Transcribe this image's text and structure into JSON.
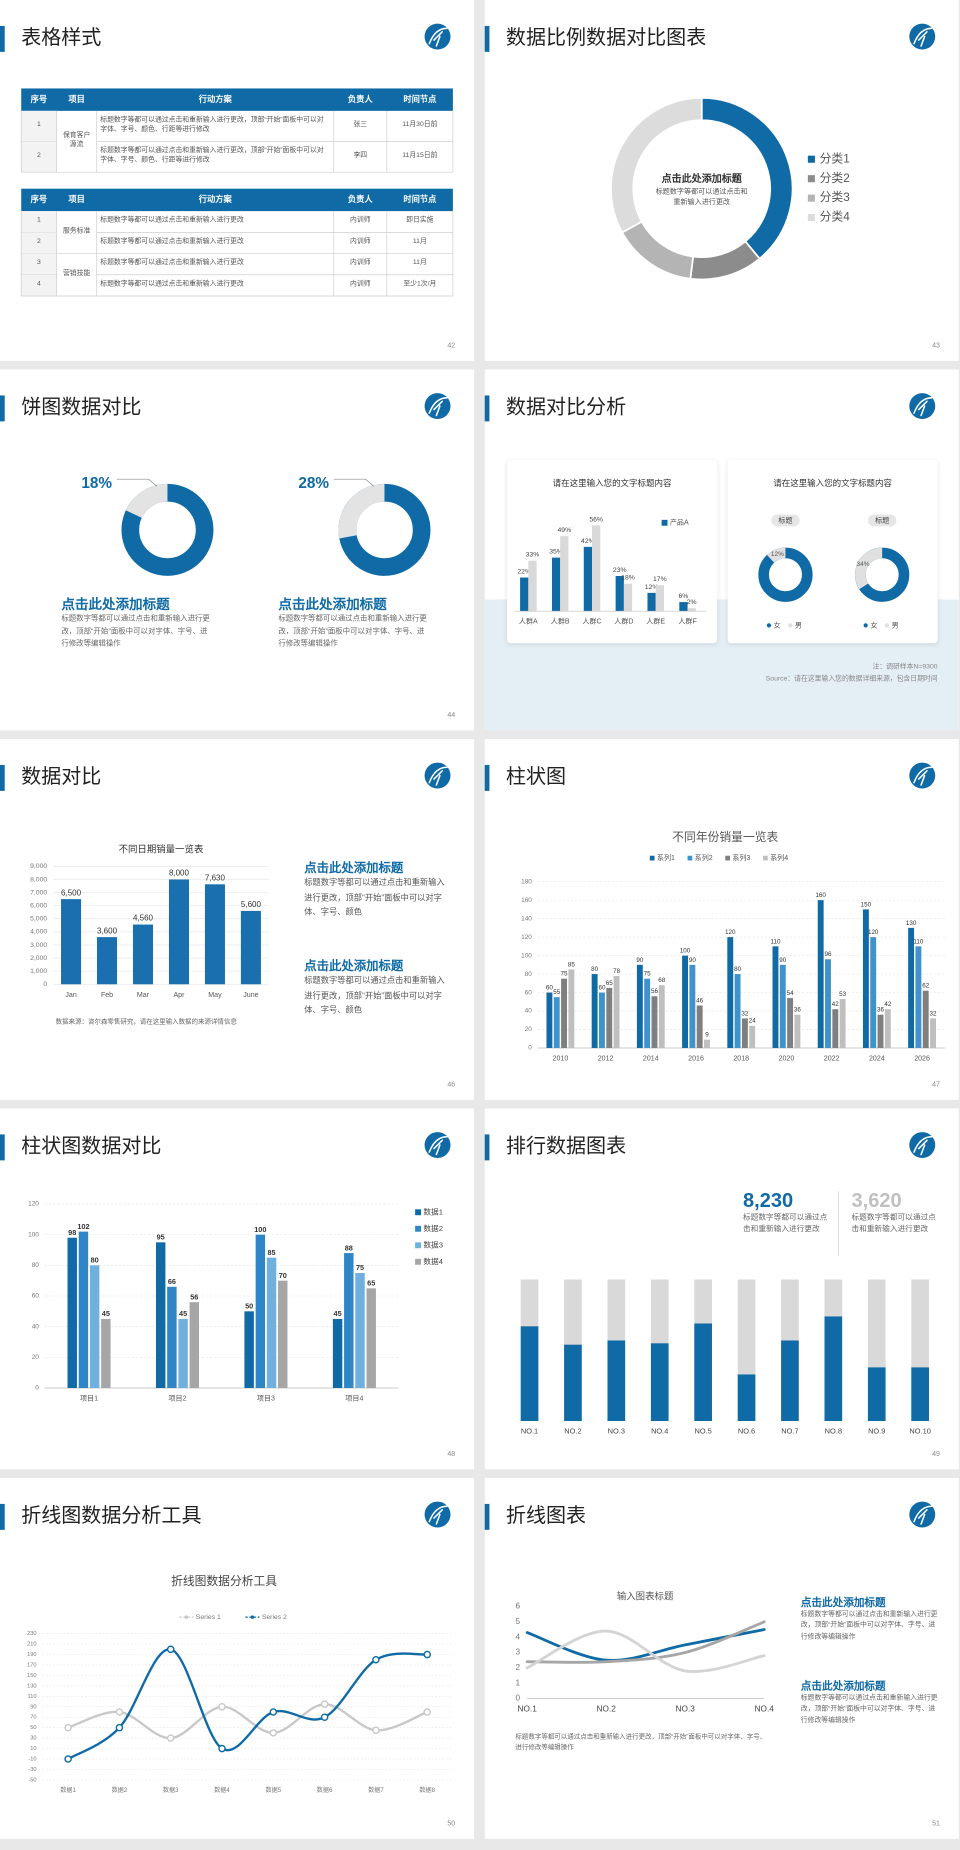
{
  "slides": [
    {
      "title": "表格样式",
      "page": 42,
      "tables": [
        {
          "header": [
            "序号",
            "项目",
            "行动方案",
            "负责人",
            "时间节点"
          ],
          "rows": [
            [
              "1",
              "保育客户源流",
              "标题数字等都可以通过点击和重新输入进行更改，顶部“开始”面板中可以对字体、字号、颜色、行距等进行修改",
              "张三",
              "11月30日前"
            ],
            [
              "2",
              null,
              "标题数字等都可以通过点击和重新输入进行更改，顶部“开始”面板中可以对字体、字号、颜色、行距等进行修改",
              "李四",
              "11月15日前"
            ]
          ]
        },
        {
          "header": [
            "序号",
            "项目",
            "行动方案",
            "负责人",
            "时间节点"
          ],
          "rows": [
            [
              "1",
              "服务标准",
              "标题数字等都可以通过点击和重新输入进行更改",
              "内训师",
              "即日实施"
            ],
            [
              "2",
              null,
              "标题数字等都可以通过点击和重新输入进行更改",
              "内训师",
              "11月"
            ],
            [
              "3",
              "营销技能",
              "标题数字等都可以通过点击和重新输入进行更改",
              "内训师",
              "11月"
            ],
            [
              "4",
              null,
              "标题数字等都可以通过点击和重新输入进行更改",
              "内训师",
              "至少1次/月"
            ]
          ]
        }
      ]
    },
    {
      "title": "数据比例数据对比图表",
      "page": 43,
      "chart_data": {
        "type": "donut",
        "title": "点击此处添加标题",
        "text": "标题数字等都可以通过点击和重新输入进行更改",
        "categories": [
          "分类1",
          "分类2",
          "分类3",
          "分类4"
        ],
        "values": [
          39,
          13,
          15,
          33
        ],
        "colors": [
          "#0f6aa6",
          "#8c8c8c",
          "#b4b4b4",
          "#dcdcdc"
        ]
      }
    },
    {
      "title": "饼图数据对比",
      "page": 44,
      "items": [
        {
          "chart_data": {
            "type": "donut",
            "values": [
              18
            ],
            "value_labels": [
              "18%"
            ],
            "color": "#e3e3e3",
            "track_color": "#0f6aa6"
          },
          "heading": "点击此处添加标题",
          "text": "标题数字等都可以通过点击和重新输入进行更改，顶部“开始”面板中可以对字体、字号、进行修改等编辑操作"
        },
        {
          "chart_data": {
            "type": "donut",
            "values": [
              28
            ],
            "value_labels": [
              "28%"
            ],
            "color": "#e3e3e3",
            "track_color": "#0f6aa6"
          },
          "heading": "点击此处添加标题",
          "text": "标题数字等都可以通过点击和重新输入进行更改，顶部“开始”面板中可以对字体、字号、进行修改等编辑操作"
        }
      ]
    },
    {
      "title": "数据对比分析",
      "page": 45,
      "cards": [
        {
          "title": "请在这里输入您的文字标题内容",
          "chart_data": {
            "type": "bar",
            "categories": [
              "人群A",
              "人群B",
              "人群C",
              "人群D",
              "人群E",
              "人群F"
            ],
            "series": [
              {
                "name": "产品A",
                "color": "#0f6aa6",
                "values": [
                  22,
                  35,
                  42,
                  23,
                  12,
                  6
                ],
                "value_labels": [
                  "22%",
                  "35%",
                  "42%",
                  "23%",
                  "12%",
                  "6%"
                ]
              },
              {
                "color": "#d9d9d9",
                "values": [
                  33,
                  49,
                  56,
                  18,
                  17,
                  2
                ],
                "value_labels": [
                  "33%",
                  "49%",
                  "56%",
                  "18%",
                  "17%",
                  "2%"
                ]
              }
            ]
          }
        },
        {
          "title": "请在这里输入您的文字标题内容",
          "chart_data": {
            "type": "donut",
            "legend": [
              {
                "name": "女",
                "color": "#0f6aa6"
              },
              {
                "name": "男",
                "color": "#e0e0e0"
              }
            ],
            "charts": [
              {
                "label": "标题",
                "values": [
                  12
                ],
                "value_labels": [
                  "12%"
                ]
              },
              {
                "label": "标题",
                "values": [
                  34
                ],
                "value_labels": [
                  "34%"
                ]
              }
            ]
          }
        }
      ],
      "notes": [
        "注：调研样本N=9300",
        "Source：请在这里输入您的数据详细来源，包含日期时间"
      ]
    },
    {
      "title": "数据对比",
      "page": 46,
      "chart_data": {
        "type": "bar",
        "title": "不同日期销量一览表",
        "categories": [
          "Jan",
          "Feb",
          "Mar",
          "Apr",
          "May",
          "June"
        ],
        "values": [
          6500,
          3600,
          4560,
          8000,
          7630,
          5600
        ],
        "value_labels": [
          "6,500",
          "3,600",
          "4,560",
          "8,000",
          "7,630",
          "5,600"
        ],
        "color": "#1a6fae",
        "ylim": [
          0,
          9000
        ],
        "yticks": [
          0,
          {
            "value": 1000,
            "label": "1,000"
          },
          {
            "value": 2000,
            "label": "2,000"
          },
          {
            "value": 3000,
            "label": "3,000"
          },
          {
            "value": 4000,
            "label": "4,000"
          },
          {
            "value": 5000,
            "label": "5,000"
          },
          {
            "value": 6000,
            "label": "6,000"
          },
          {
            "value": 7000,
            "label": "7,000"
          },
          {
            "value": 8000,
            "label": "8,000"
          },
          {
            "value": 9000,
            "label": "9,000"
          }
        ],
        "grid": true,
        "source": "数据来源：咨尔森零售研究，请在这里输入数据的来源详情信息"
      },
      "blocks": [
        {
          "heading": "点击此处添加标题",
          "text": "标题数字等都可以通过点击和重新输入进行更改，顶部“开始”面板中可以对字体、字号、颜色"
        },
        {
          "heading": "点击此处添加标题",
          "text": "标题数字等都可以通过点击和重新输入进行更改，顶部“开始”面板中可以对字体、字号、颜色"
        }
      ]
    },
    {
      "title": "柱状图",
      "page": 47,
      "chart_data": {
        "type": "bar",
        "title": "不同年份销量一览表",
        "categories": [
          "2010",
          "2012",
          "2014",
          "2016",
          "2018",
          "2020",
          "2022",
          "2024",
          "2026"
        ],
        "series": [
          {
            "name": "系列1",
            "color": "#0f6aa6",
            "values": [
              60,
              80,
              90,
              100,
              120,
              110,
              160,
              150,
              130
            ]
          },
          {
            "name": "系列2",
            "color": "#3f93cc",
            "values": [
              55,
              60,
              75,
              90,
              80,
              90,
              96,
              120,
              110
            ]
          },
          {
            "name": "系列3",
            "color": "#7f7f7f",
            "values": [
              75,
              65,
              56,
              46,
              32,
              54,
              42,
              36,
              62
            ]
          },
          {
            "name": "系列4",
            "color": "#bfbfbf",
            "values": [
              85,
              78,
              68,
              9,
              24,
              36,
              53,
              42,
              32
            ]
          }
        ],
        "ylim": [
          0,
          180
        ],
        "yticks": [
          0,
          20,
          40,
          60,
          80,
          100,
          120,
          140,
          160,
          180
        ],
        "grid": true,
        "legend": "top"
      }
    },
    {
      "title": "柱状图数据对比",
      "page": 48,
      "chart_data": {
        "type": "bar",
        "categories": [
          "项目1",
          "项目2",
          "项目3",
          "项目4"
        ],
        "series": [
          {
            "name": "数据1",
            "color": "#0f6aa6",
            "values": [
              98,
              95,
              50,
              45
            ]
          },
          {
            "name": "数据2",
            "color": "#2f86c6",
            "values": [
              102,
              66,
              100,
              88
            ]
          },
          {
            "name": "数据3",
            "color": "#6fb0de",
            "values": [
              80,
              45,
              85,
              75
            ]
          },
          {
            "name": "数据4",
            "color": "#a6a6a6",
            "values": [
              45,
              56,
              70,
              65
            ]
          }
        ],
        "ylim": [
          0,
          120
        ],
        "yticks": [
          0,
          20,
          40,
          60,
          80,
          100,
          120
        ],
        "grid": true,
        "legend": "right"
      }
    },
    {
      "title": "排行数据图表",
      "page": 49,
      "highlights": [
        {
          "value": "8,230",
          "color": "#0f6aa6",
          "text": "标题数字等都可以通过点击和重新输入进行更改"
        },
        {
          "value": "3,620",
          "color": "#c0c0c0",
          "text": "标题数字等都可以通过点击和重新输入进行更改"
        }
      ],
      "chart_data": {
        "type": "stacked_bar",
        "categories": [
          "NO.1",
          "NO.2",
          "NO.3",
          "NO.4",
          "NO.5",
          "NO.6",
          "NO.7",
          "NO.8",
          "NO.9",
          "NO.10"
        ],
        "series": [
          {
            "color": "#0f6aa6",
            "values": [
              67,
              54,
              57,
              55,
              69,
              33,
              57,
              74,
              38,
              38
            ]
          },
          {
            "color": "#d9d9d9",
            "values": [
              33,
              46,
              43,
              45,
              31,
              67,
              43,
              26,
              62,
              62
            ]
          }
        ]
      }
    },
    {
      "title": "折线图数据分析工具",
      "page": 50,
      "chart_data": {
        "type": "line",
        "title": "折线图数据分析工具",
        "categories": [
          "数据1",
          "数据2",
          "数据3",
          "数据4",
          "数据5",
          "数据6",
          "数据7",
          "数据8"
        ],
        "series": [
          {
            "name": "Series 1",
            "color": "#c8c8c8",
            "values": [
              50,
              80,
              30,
              90,
              40,
              95,
              45,
              80
            ]
          },
          {
            "name": "Series 2",
            "color": "#0f6aa6",
            "values": [
              -10,
              50,
              200,
              10,
              80,
              70,
              180,
              190
            ]
          }
        ],
        "ylim": [
          -50,
          230
        ],
        "yticks": [
          -50,
          -30,
          -10,
          10,
          30,
          50,
          70,
          90,
          110,
          130,
          150,
          170,
          190,
          210,
          230
        ],
        "grid": true,
        "legend": "top"
      }
    },
    {
      "title": "折线图表",
      "page": 51,
      "chart_data": {
        "type": "line",
        "title": "输入图表标题",
        "categories": [
          "NO.1",
          "NO.2",
          "NO.3",
          "NO.4"
        ],
        "series": [
          {
            "color": "#0f6aa6",
            "values": [
              4.3,
              2.5,
              3.5,
              4.5
            ]
          },
          {
            "color": "#a6a6a6",
            "values": [
              2.4,
              2.4,
              3.0,
              5.0
            ]
          },
          {
            "color": "#d4d4d4",
            "values": [
              2.0,
              4.4,
              1.8,
              2.8
            ]
          }
        ],
        "ylim": [
          0,
          6
        ],
        "yticks": [
          0,
          1,
          2,
          3,
          4,
          5,
          6
        ],
        "grid": false
      },
      "blocks": [
        {
          "heading": "点击此处添加标题",
          "text": "标题数字等都可以通过点击和重新输入进行更改，顶部“开始”面板中可以对字体、字号、进行修改等编辑操作"
        },
        {
          "heading": "点击此处添加标题",
          "text": "标题数字等都可以通过点击和重新输入进行更改，顶部“开始”面板中可以对字体、字号、进行修改等编辑操作"
        }
      ],
      "note": "标题数字等都可以通过点击和重新输入进行更改，顶部“开始”面板中可以对字体、字号、进行修改等编辑操作"
    }
  ]
}
